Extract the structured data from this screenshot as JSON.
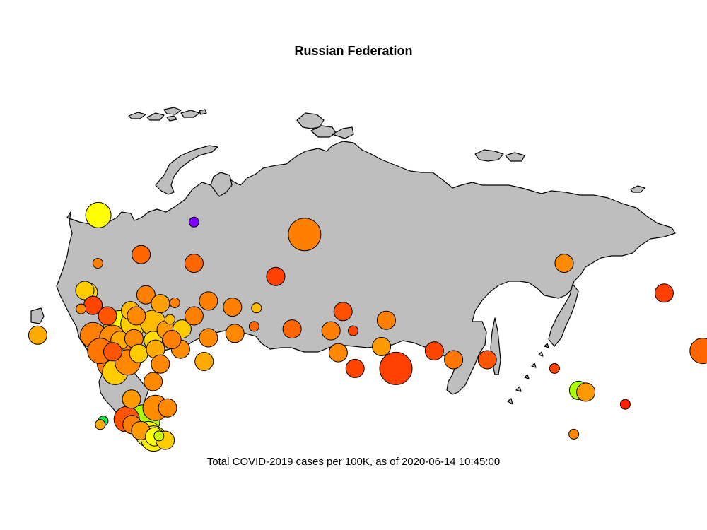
{
  "title": "Russian Federation",
  "caption": "Total COVID-2019 cases per 100K, as of 2020-06-14 10:45:00",
  "colors": {
    "land": "#bebebe",
    "outline": "#000000"
  },
  "markers": [
    {
      "id": "murmansk",
      "lon": 33.1,
      "lat": 68.5,
      "size": 3,
      "color": "#ffff00"
    },
    {
      "id": "nenets",
      "lon": 53.0,
      "lat": 67.7,
      "size": 1,
      "color": "#8000ff"
    },
    {
      "id": "yamalo-nenets",
      "lon": 76.0,
      "lat": 66.3,
      "size": 4,
      "color": "#ff8000"
    },
    {
      "id": "komi",
      "lon": 53.0,
      "lat": 63.0,
      "size": 2,
      "color": "#ff6600"
    },
    {
      "id": "arkhangelsk",
      "lon": 42.0,
      "lat": 64.0,
      "size": 2,
      "color": "#ff6600"
    },
    {
      "id": "karelia",
      "lon": 33.0,
      "lat": 63.0,
      "size": 1,
      "color": "#ff8000"
    },
    {
      "id": "khanty-mansi",
      "lon": 70.0,
      "lat": 61.5,
      "size": 2,
      "color": "#ff4000"
    },
    {
      "id": "leningrad",
      "lon": 31.0,
      "lat": 59.7,
      "size": 2,
      "color": "#ffdd00"
    },
    {
      "id": "st-petersburg",
      "lon": 30.3,
      "lat": 59.9,
      "size": 2,
      "color": "#ffcc00"
    },
    {
      "id": "novgorod",
      "lon": 32.0,
      "lat": 58.2,
      "size": 2,
      "color": "#ff4400"
    },
    {
      "id": "pskov",
      "lon": 29.5,
      "lat": 57.8,
      "size": 1,
      "color": "#ff8c00"
    },
    {
      "id": "vologda",
      "lon": 43.0,
      "lat": 59.4,
      "size": 2,
      "color": "#ff8000"
    },
    {
      "id": "kostroma",
      "lon": 46.0,
      "lat": 58.4,
      "size": 2,
      "color": "#ffa000"
    },
    {
      "id": "kirov",
      "lon": 49.0,
      "lat": 58.5,
      "size": 1,
      "color": "#ff8000"
    },
    {
      "id": "perm",
      "lon": 56.0,
      "lat": 58.7,
      "size": 2,
      "color": "#ff8000"
    },
    {
      "id": "sverdlovsk",
      "lon": 61.0,
      "lat": 58.0,
      "size": 2,
      "color": "#ff8000"
    },
    {
      "id": "tyumen",
      "lon": 66.0,
      "lat": 57.9,
      "size": 1,
      "color": "#ffbb00"
    },
    {
      "id": "kurgan",
      "lon": 65.5,
      "lat": 55.8,
      "size": 1,
      "color": "#ff6600"
    },
    {
      "id": "chelyabinsk",
      "lon": 61.5,
      "lat": 55.0,
      "size": 2,
      "color": "#ff8800"
    },
    {
      "id": "omsk",
      "lon": 73.4,
      "lat": 55.5,
      "size": 2,
      "color": "#ff6600"
    },
    {
      "id": "tomsk",
      "lon": 84.0,
      "lat": 57.5,
      "size": 2,
      "color": "#ff5000"
    },
    {
      "id": "novosibirsk",
      "lon": 81.5,
      "lat": 55.3,
      "size": 2,
      "color": "#ff8000"
    },
    {
      "id": "kemerovo",
      "lon": 86.1,
      "lat": 55.3,
      "size": 1,
      "color": "#ff4400"
    },
    {
      "id": "altai-krai",
      "lon": 83.0,
      "lat": 52.8,
      "size": 2,
      "color": "#ff8800"
    },
    {
      "id": "altai-republic",
      "lon": 86.5,
      "lat": 51.0,
      "size": 2,
      "color": "#ff4400"
    },
    {
      "id": "krasnoyarsk-south",
      "lon": 93.0,
      "lat": 56.5,
      "size": 2,
      "color": "#ff8000"
    },
    {
      "id": "khakassia",
      "lon": 92.0,
      "lat": 53.5,
      "size": 2,
      "color": "#ff9900"
    },
    {
      "id": "tuva",
      "lon": 95.0,
      "lat": 51.0,
      "size": 4,
      "color": "#ff4000"
    },
    {
      "id": "irkutsk",
      "lon": 103.0,
      "lat": 53.0,
      "size": 2,
      "color": "#ff4400"
    },
    {
      "id": "buryatia",
      "lon": 107.0,
      "lat": 52.0,
      "size": 2,
      "color": "#ff7700"
    },
    {
      "id": "zabaykalsky",
      "lon": 114.0,
      "lat": 52.0,
      "size": 2,
      "color": "#ff5500"
    },
    {
      "id": "sakha",
      "lon": 130.0,
      "lat": 63.0,
      "size": 2,
      "color": "#ff8c00"
    },
    {
      "id": "magadan",
      "lon": 150.8,
      "lat": 59.6,
      "size": 2,
      "color": "#ff4000"
    },
    {
      "id": "chukotka",
      "lon": 172.0,
      "lat": 64.6,
      "size": 2,
      "color": "#ff6600"
    },
    {
      "id": "kamchatka",
      "lon": 158.8,
      "lat": 53.0,
      "size": 3,
      "color": "#ff6600"
    },
    {
      "id": "amur",
      "lon": 128.0,
      "lat": 51.0,
      "size": 1,
      "color": "#ff4400"
    },
    {
      "id": "jewish-ao",
      "lon": 133.0,
      "lat": 48.5,
      "size": 2,
      "color": "#aaff00"
    },
    {
      "id": "khabarovsk",
      "lon": 134.5,
      "lat": 48.3,
      "size": 2,
      "color": "#ff9900"
    },
    {
      "id": "sakhalin",
      "lon": 142.7,
      "lat": 46.9,
      "size": 1,
      "color": "#ff2000"
    },
    {
      "id": "primorsky",
      "lon": 132.0,
      "lat": 43.5,
      "size": 1,
      "color": "#ff8800"
    },
    {
      "id": "kaliningrad",
      "lon": 20.5,
      "lat": 54.8,
      "size": 2,
      "color": "#ffaa00"
    },
    {
      "id": "smolensk",
      "lon": 32.0,
      "lat": 54.8,
      "size": 3,
      "color": "#ff8000"
    },
    {
      "id": "tver",
      "lon": 35.0,
      "lat": 57.0,
      "size": 2,
      "color": "#ff5500"
    },
    {
      "id": "moscow",
      "lon": 37.6,
      "lat": 55.75,
      "size": 4,
      "color": "#ffff00"
    },
    {
      "id": "yaroslavl",
      "lon": 39.8,
      "lat": 57.6,
      "size": 2,
      "color": "#ffbb00"
    },
    {
      "id": "ivanovo",
      "lon": 41.0,
      "lat": 57.0,
      "size": 2,
      "color": "#ff8800"
    },
    {
      "id": "vladimir",
      "lon": 40.4,
      "lat": 56.1,
      "size": 3,
      "color": "#ffcc00"
    },
    {
      "id": "kaluga",
      "lon": 36.0,
      "lat": 54.5,
      "size": 3,
      "color": "#ff8c00"
    },
    {
      "id": "tula",
      "lon": 37.6,
      "lat": 54.2,
      "size": 2,
      "color": "#ffaa00"
    },
    {
      "id": "ryazan",
      "lon": 40.5,
      "lat": 54.4,
      "size": 2,
      "color": "#ff8800"
    },
    {
      "id": "nizhny-novgorod",
      "lon": 44.5,
      "lat": 56.2,
      "size": 3,
      "color": "#ffbb00"
    },
    {
      "id": "mordovia",
      "lon": 44.5,
      "lat": 54.2,
      "size": 2,
      "color": "#ffdd00"
    },
    {
      "id": "chuvashia",
      "lon": 47.2,
      "lat": 55.4,
      "size": 2,
      "color": "#ff9900"
    },
    {
      "id": "mari-el",
      "lon": 48.0,
      "lat": 56.6,
      "size": 1,
      "color": "#ffbb00"
    },
    {
      "id": "tatarstan",
      "lon": 50.5,
      "lat": 55.5,
      "size": 2,
      "color": "#ffcc00"
    },
    {
      "id": "udmurtia",
      "lon": 53.0,
      "lat": 57.0,
      "size": 2,
      "color": "#ff8000"
    },
    {
      "id": "bashkortostan",
      "lon": 56.0,
      "lat": 54.5,
      "size": 2,
      "color": "#ff8800"
    },
    {
      "id": "samara",
      "lon": 50.2,
      "lat": 53.2,
      "size": 2,
      "color": "#ff8c00"
    },
    {
      "id": "orenburg",
      "lon": 55.1,
      "lat": 51.8,
      "size": 2,
      "color": "#ffaa00"
    },
    {
      "id": "bryansk",
      "lon": 33.5,
      "lat": 53.0,
      "size": 3,
      "color": "#ff7700"
    },
    {
      "id": "kursk",
      "lon": 36.2,
      "lat": 51.7,
      "size": 4,
      "color": "#ff7700"
    },
    {
      "id": "belgorod",
      "lon": 36.6,
      "lat": 50.6,
      "size": 3,
      "color": "#ffcc00"
    },
    {
      "id": "oryol",
      "lon": 36.1,
      "lat": 52.9,
      "size": 2,
      "color": "#ff5500"
    },
    {
      "id": "lipetsk",
      "lon": 39.6,
      "lat": 52.6,
      "size": 3,
      "color": "#ff8800"
    },
    {
      "id": "tambov",
      "lon": 41.5,
      "lat": 52.7,
      "size": 2,
      "color": "#ffcc00"
    },
    {
      "id": "voronezh",
      "lon": 39.2,
      "lat": 51.7,
      "size": 3,
      "color": "#ff8800"
    },
    {
      "id": "penza",
      "lon": 45.0,
      "lat": 53.2,
      "size": 2,
      "color": "#ffaa00"
    },
    {
      "id": "ulyanovsk",
      "lon": 48.4,
      "lat": 54.3,
      "size": 2,
      "color": "#ff8000"
    },
    {
      "id": "saratov",
      "lon": 46.0,
      "lat": 51.5,
      "size": 2,
      "color": "#ff8800"
    },
    {
      "id": "volgograd",
      "lon": 44.5,
      "lat": 49.5,
      "size": 2,
      "color": "#ff8800"
    },
    {
      "id": "rostov",
      "lon": 40.0,
      "lat": 47.5,
      "size": 2,
      "color": "#ff9900"
    },
    {
      "id": "kalmykia",
      "lon": 45.0,
      "lat": 46.5,
      "size": 3,
      "color": "#ff8c00"
    },
    {
      "id": "astrakhan",
      "lon": 47.5,
      "lat": 46.5,
      "size": 2,
      "color": "#ff8800"
    },
    {
      "id": "krasnodar",
      "lon": 39.0,
      "lat": 45.2,
      "size": 3,
      "color": "#ff5500"
    },
    {
      "id": "adygea",
      "lon": 40.1,
      "lat": 44.6,
      "size": 2,
      "color": "#ff8000"
    },
    {
      "id": "stavropol",
      "lon": 42.5,
      "lat": 45.0,
      "size": 4,
      "color": "#aaff00"
    },
    {
      "id": "karachay-cherkessia",
      "lon": 41.9,
      "lat": 43.9,
      "size": 2,
      "color": "#ff9900"
    },
    {
      "id": "kabardino-balkaria",
      "lon": 43.5,
      "lat": 43.5,
      "size": 3,
      "color": "#ffff00"
    },
    {
      "id": "north-ossetia",
      "lon": 44.6,
      "lat": 43.0,
      "size": 3,
      "color": "#ffee00"
    },
    {
      "id": "ingushetia",
      "lon": 44.8,
      "lat": 43.2,
      "size": 2,
      "color": "#ffff00"
    },
    {
      "id": "chechnya",
      "lon": 45.7,
      "lat": 43.3,
      "size": 1,
      "color": "#ccff00"
    },
    {
      "id": "dagestan",
      "lon": 47.0,
      "lat": 42.8,
      "size": 2,
      "color": "#ffcc00"
    },
    {
      "id": "crimea",
      "lon": 34.1,
      "lat": 45.0,
      "size": 1,
      "color": "#11ee44"
    },
    {
      "id": "sevastopol",
      "lon": 33.5,
      "lat": 44.6,
      "size": 1,
      "color": "#ffaa00"
    }
  ]
}
